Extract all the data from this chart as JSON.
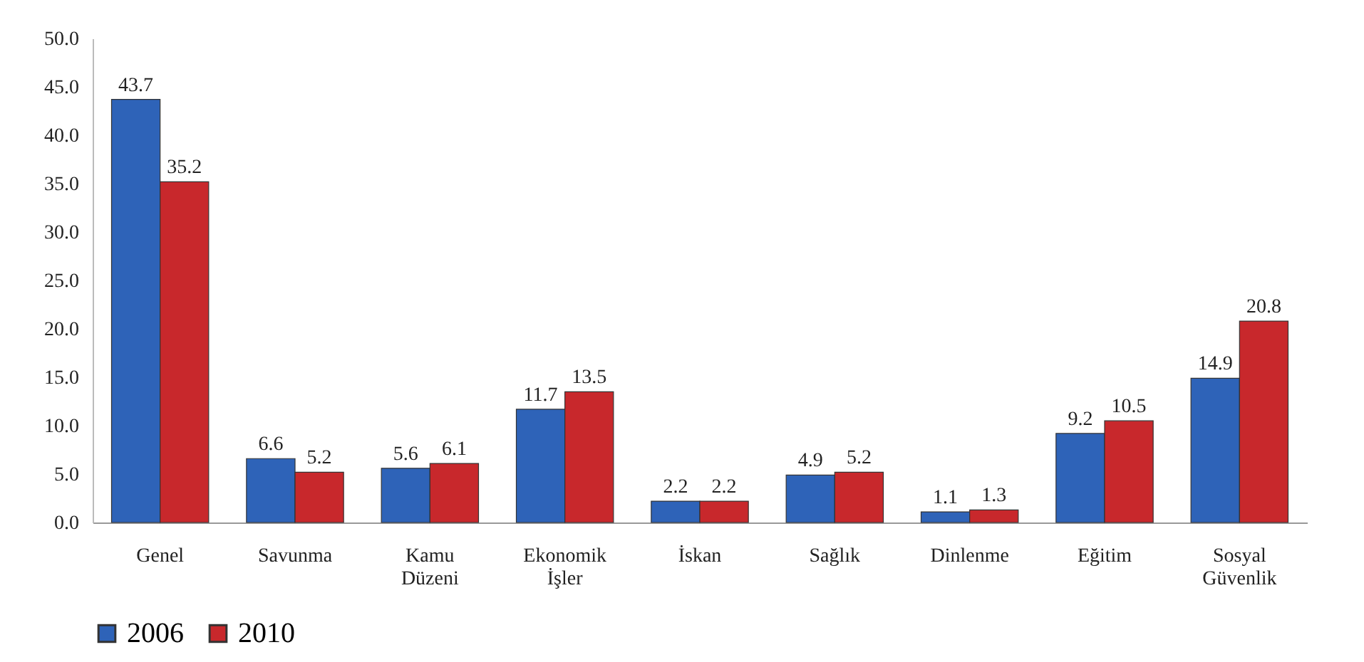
{
  "chart_data": {
    "type": "bar",
    "categories": [
      "Genel",
      "Savunma",
      "Kamu Düzeni",
      "Ekonomik İşler",
      "İskan",
      "Sağlık",
      "Dinlenme",
      "Eğitim",
      "Sosyal Güvenlik"
    ],
    "series": [
      {
        "name": "2006",
        "color": "#2e63b8",
        "values": [
          43.7,
          6.6,
          5.6,
          11.7,
          2.2,
          4.9,
          1.1,
          9.2,
          14.9
        ]
      },
      {
        "name": "2010",
        "color": "#c8282c",
        "values": [
          35.2,
          5.2,
          6.1,
          13.5,
          2.2,
          5.2,
          1.3,
          10.5,
          20.8
        ]
      }
    ],
    "ylim": [
      0,
      50
    ],
    "yticks": [
      {
        "value": 0,
        "label": "0.0"
      },
      {
        "value": 5,
        "label": "5.0"
      },
      {
        "value": 10,
        "label": "10.0"
      },
      {
        "value": 15,
        "label": "15.0"
      },
      {
        "value": 20,
        "label": "20.0"
      },
      {
        "value": 25,
        "label": "25.0"
      },
      {
        "value": 30,
        "label": "30.0"
      },
      {
        "value": 35,
        "label": "35.0"
      },
      {
        "value": 40,
        "label": "40.0"
      },
      {
        "value": 45,
        "label": "45.0"
      },
      {
        "value": 50,
        "label": "50.0"
      }
    ],
    "data_labels": true,
    "grid": false,
    "legend": "bottom"
  }
}
